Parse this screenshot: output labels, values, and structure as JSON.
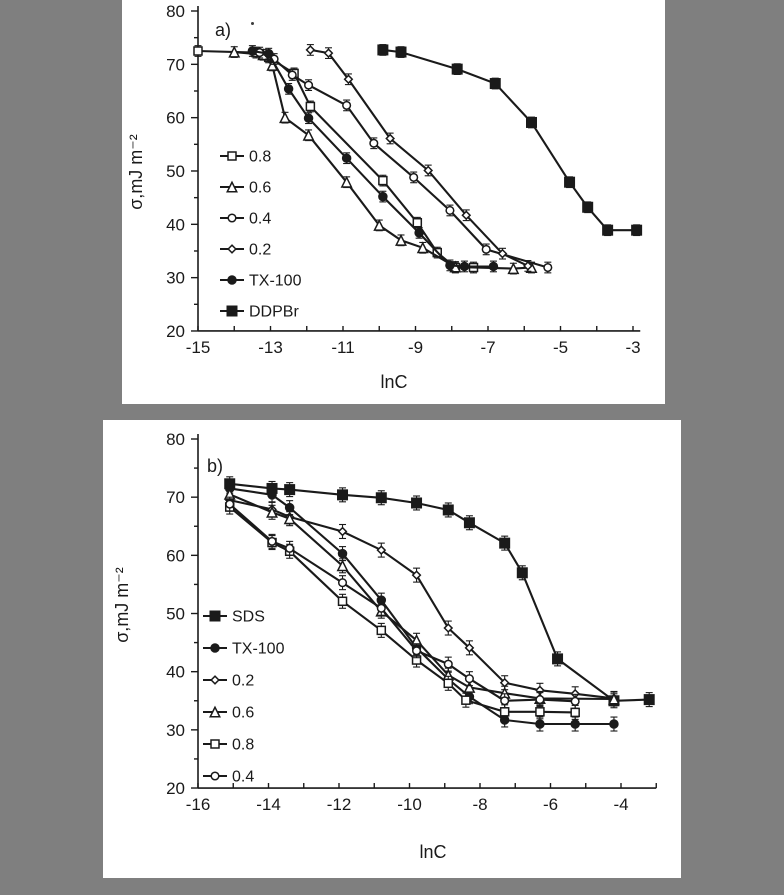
{
  "page": {
    "background_color": "#7f7f7f",
    "panel_color": "#ffffff",
    "ink_color": "#1a1a1a"
  },
  "chart_data": [
    {
      "id": "a",
      "type": "line",
      "panel_label": "a)",
      "xlabel": "lnC",
      "ylabel": "σ,mJ m⁻²",
      "xlim": [
        -15,
        -2.8
      ],
      "ylim": [
        20,
        80
      ],
      "x_tick_step": 1,
      "x_labeled_ticks": [
        -15,
        -13,
        -11,
        -9,
        -7,
        -5,
        -3
      ],
      "y_tick_step": 5,
      "y_labeled_ticks": [
        20,
        30,
        40,
        50,
        60,
        70,
        80
      ],
      "grid": false,
      "error_bar": 1.0,
      "legend_position": "inside-left",
      "legend": [
        "0.8",
        "0.6",
        "0.4",
        "0.2",
        "TX-100",
        "DDPBr"
      ],
      "series": [
        {
          "name": "0.8",
          "marker": "open-square",
          "x": [
            -15,
            -13.4,
            -13.05,
            -12.35,
            -11.9,
            -9.9,
            -8.95,
            -8.4,
            -7.9,
            -7.4
          ],
          "y": [
            72.5,
            72.2,
            71.3,
            68.3,
            62.1,
            48.2,
            40.3,
            34.7,
            31.9,
            31.9
          ]
        },
        {
          "name": "0.6",
          "marker": "open-triangle",
          "x": [
            -14,
            -13.2,
            -12.95,
            -12.6,
            -11.95,
            -10.9,
            -10.0,
            -9.4,
            -8.8,
            -7.9,
            -6.3,
            -5.8
          ],
          "y": [
            72.3,
            71.8,
            69.8,
            60.0,
            56.7,
            47.9,
            39.8,
            37.0,
            35.6,
            32.0,
            31.7,
            31.9
          ]
        },
        {
          "name": "0.4",
          "marker": "open-circle",
          "x": [
            -13.3,
            -12.9,
            -12.4,
            -11.95,
            -10.9,
            -10.15,
            -9.05,
            -8.05,
            -7.05,
            -5.35
          ],
          "y": [
            72.2,
            71.0,
            68.0,
            66.1,
            62.3,
            55.2,
            48.8,
            42.6,
            35.3,
            31.9
          ]
        },
        {
          "name": "0.2",
          "marker": "open-diamond",
          "x": [
            -11.9,
            -11.4,
            -10.85,
            -9.7,
            -8.65,
            -7.6,
            -6.6,
            -5.9
          ],
          "y": [
            72.7,
            72.1,
            67.2,
            56.1,
            50.1,
            41.7,
            34.5,
            32.2
          ]
        },
        {
          "name": "TX-100",
          "marker": "filled-circle",
          "x": [
            -13.5,
            -13.05,
            -12.5,
            -11.95,
            -10.9,
            -9.9,
            -8.9,
            -8.05,
            -7.65,
            -6.85
          ],
          "y": [
            72.5,
            72.0,
            65.4,
            59.9,
            52.4,
            45.2,
            38.4,
            32.3,
            32.1,
            32.1
          ]
        },
        {
          "name": "DDPBr",
          "marker": "filled-square",
          "x": [
            -9.9,
            -9.4,
            -7.85,
            -6.8,
            -5.8,
            -4.75,
            -4.25,
            -3.7,
            -2.9
          ],
          "y": [
            72.7,
            72.3,
            69.1,
            66.4,
            59.1,
            47.9,
            43.2,
            38.9,
            38.9
          ]
        }
      ]
    },
    {
      "id": "b",
      "type": "line",
      "panel_label": "b)",
      "xlabel": "lnC",
      "ylabel": "σ,mJ m⁻²",
      "xlim": [
        -16,
        -3.0
      ],
      "ylim": [
        20,
        80
      ],
      "x_tick_step": 1,
      "x_labeled_ticks": [
        -16,
        -14,
        -12,
        -10,
        -8,
        -6,
        -4
      ],
      "y_tick_step": 5,
      "y_labeled_ticks": [
        20,
        30,
        40,
        50,
        60,
        70,
        80
      ],
      "grid": false,
      "error_bar": 1.2,
      "legend_position": "inside-left",
      "legend": [
        "SDS",
        "TX-100",
        "0.2",
        "0.6",
        "0.8",
        "0.4"
      ],
      "series": [
        {
          "name": "SDS",
          "marker": "filled-square",
          "x": [
            -15.1,
            -13.9,
            -13.4,
            -11.9,
            -10.8,
            -9.8,
            -8.9,
            -8.3,
            -7.3,
            -6.8,
            -5.8,
            -4.2,
            -3.2
          ],
          "y": [
            72.3,
            71.5,
            71.3,
            70.4,
            69.9,
            69.0,
            67.8,
            65.6,
            62.1,
            57.0,
            42.2,
            35.0,
            35.2
          ]
        },
        {
          "name": "TX-100",
          "marker": "filled-circle",
          "x": [
            -15.1,
            -13.9,
            -13.4,
            -11.9,
            -10.8,
            -9.8,
            -8.9,
            -8.3,
            -7.3,
            -6.3,
            -5.3,
            -4.2
          ],
          "y": [
            71.5,
            70.4,
            68.2,
            60.3,
            52.3,
            44.1,
            38.7,
            35.7,
            31.7,
            31.0,
            31.0,
            31.0
          ]
        },
        {
          "name": "0.2",
          "marker": "open-diamond",
          "x": [
            -15.1,
            -13.9,
            -13.4,
            -11.9,
            -10.8,
            -9.8,
            -8.9,
            -8.3,
            -7.3,
            -6.3,
            -5.3,
            -4.2
          ],
          "y": [
            69.5,
            67.9,
            66.6,
            64.1,
            60.9,
            56.6,
            47.5,
            44.1,
            38.1,
            36.8,
            36.2,
            35.4
          ]
        },
        {
          "name": "0.6",
          "marker": "open-triangle",
          "x": [
            -15.1,
            -13.9,
            -13.4,
            -11.9,
            -10.8,
            -9.8,
            -8.9,
            -8.3,
            -7.3,
            -6.3,
            -4.2
          ],
          "y": [
            70.5,
            67.4,
            66.3,
            58.2,
            50.4,
            45.4,
            39.4,
            37.3,
            36.3,
            35.4,
            35.3
          ]
        },
        {
          "name": "0.8",
          "marker": "open-square",
          "x": [
            -15.1,
            -13.9,
            -13.4,
            -11.9,
            -10.8,
            -9.8,
            -8.9,
            -8.4,
            -7.3,
            -6.3,
            -5.3
          ],
          "y": [
            68.3,
            62.2,
            60.7,
            52.1,
            47.1,
            42.0,
            38.0,
            35.1,
            33.1,
            33.1,
            33.0
          ]
        },
        {
          "name": "0.4",
          "marker": "open-circle",
          "x": [
            -15.1,
            -13.9,
            -13.4,
            -11.9,
            -10.8,
            -9.8,
            -8.9,
            -8.3,
            -7.3,
            -6.3,
            -5.3
          ],
          "y": [
            68.8,
            62.4,
            61.2,
            55.3,
            50.9,
            43.6,
            41.3,
            38.8,
            35.0,
            35.2,
            34.9
          ]
        }
      ]
    }
  ]
}
